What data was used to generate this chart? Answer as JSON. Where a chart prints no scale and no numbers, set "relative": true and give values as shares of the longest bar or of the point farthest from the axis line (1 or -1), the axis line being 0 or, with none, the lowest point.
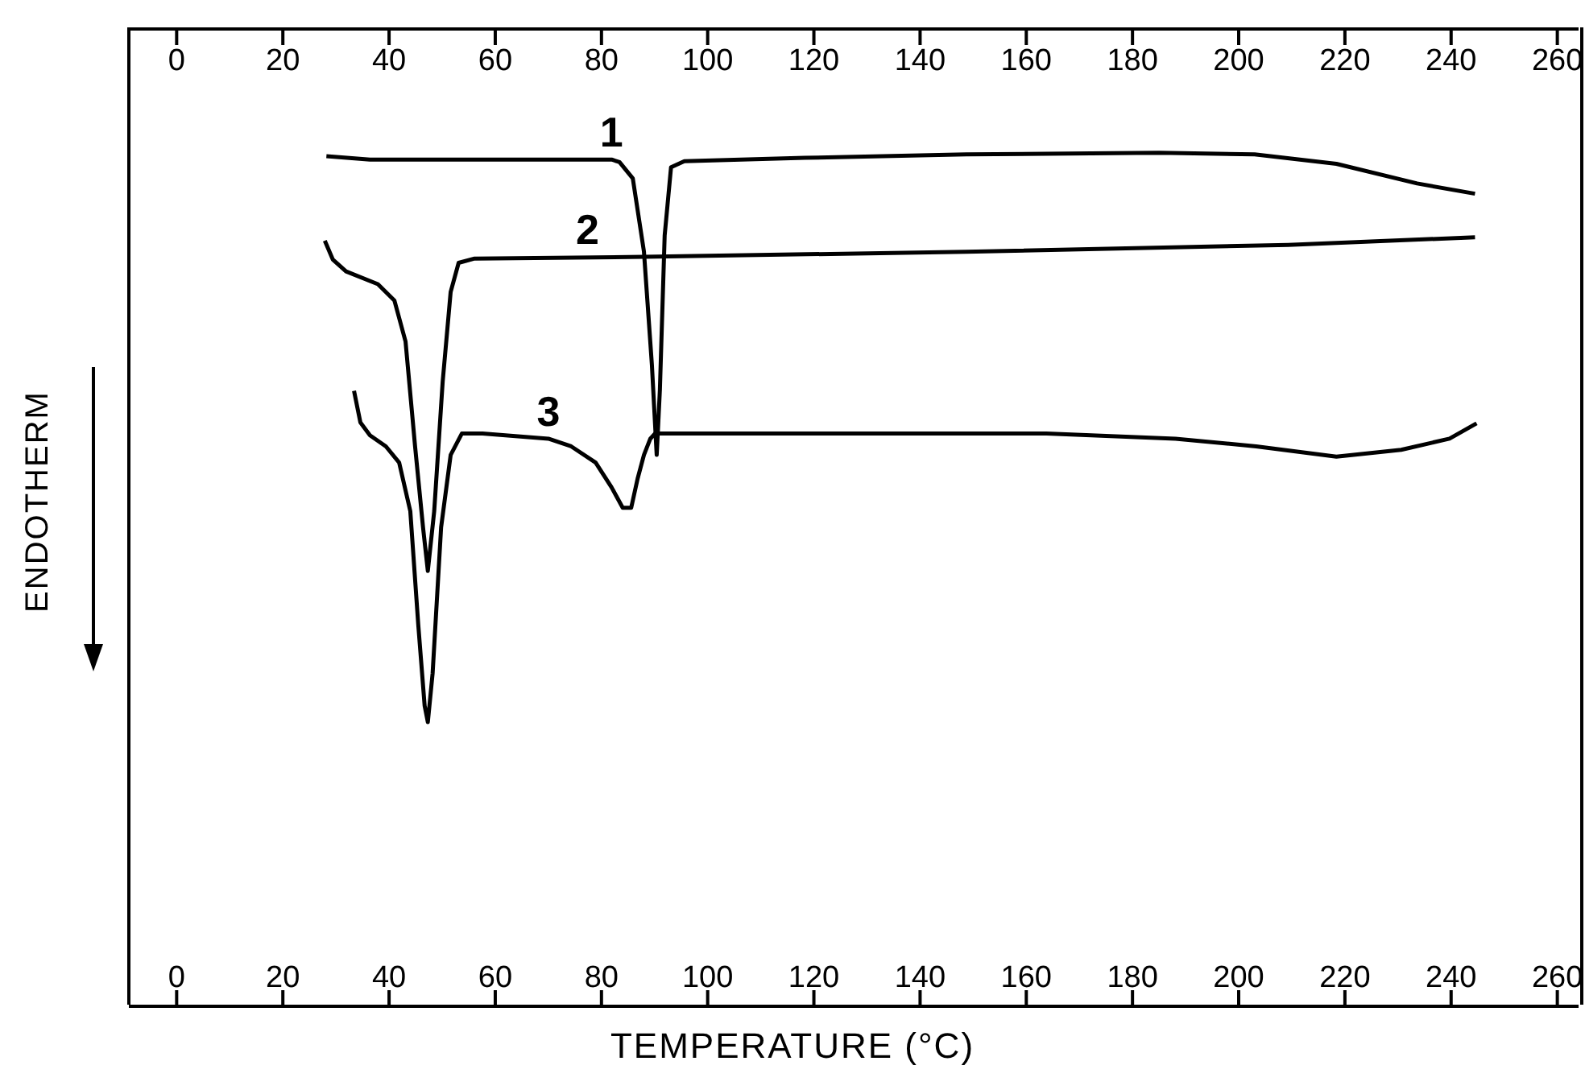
{
  "chart_data": {
    "type": "line",
    "relative": true,
    "xlabel": "TEMPERATURE (°C)",
    "ylabel": "ENDOTHERM",
    "xlim": [
      -9,
      264
    ],
    "xticks": [
      0,
      20,
      40,
      60,
      80,
      100,
      120,
      140,
      160,
      180,
      200,
      220,
      240,
      260
    ],
    "x2lim": [
      -9,
      264
    ],
    "x2ticks": [
      0,
      20,
      40,
      60,
      80,
      100,
      120,
      140,
      160,
      180,
      200,
      220,
      240,
      260
    ],
    "marker": "none",
    "line_style": "solid",
    "series": [
      {
        "name": "1",
        "color": "#000000",
        "x": [
          28.2,
          36.4,
          57.6,
          81.9,
          83.4,
          85.9,
          88,
          89.5,
          90.4,
          91,
          91.9,
          93.1,
          95.6,
          118.3,
          148.7,
          185,
          203,
          218.4,
          233.6,
          244.5
        ],
        "values": [
          0.996,
          0.992,
          0.992,
          0.992,
          0.989,
          0.97,
          0.884,
          0.751,
          0.646,
          0.722,
          0.903,
          0.983,
          0.99,
          0.994,
          0.998,
          1.0,
          0.998,
          0.987,
          0.964,
          0.952
        ]
      },
      {
        "name": "2",
        "color": "#000000",
        "x": [
          27.9,
          29.4,
          31.9,
          37.9,
          41,
          43.1,
          44.9,
          46.4,
          47.3,
          48.5,
          50.1,
          51.6,
          53.1,
          56.1,
          88,
          148.7,
          209.3,
          244.5
        ],
        "values": [
          0.897,
          0.875,
          0.861,
          0.846,
          0.827,
          0.779,
          0.656,
          0.561,
          0.51,
          0.58,
          0.732,
          0.837,
          0.871,
          0.876,
          0.878,
          0.884,
          0.892,
          0.901
        ]
      },
      {
        "name": "3",
        "color": "#000000",
        "x": [
          33.4,
          34.6,
          36.4,
          39.4,
          41.9,
          44,
          45.5,
          46.7,
          47.3,
          48.2,
          49.8,
          51.6,
          53.7,
          57.6,
          70,
          74.3,
          78.9,
          81.9,
          84,
          85.6,
          86.8,
          88,
          89.2,
          90.1,
          118.3,
          163.8,
          188.1,
          203.3,
          218.4,
          230.6,
          239.7,
          244.8
        ],
        "values": [
          0.721,
          0.684,
          0.669,
          0.656,
          0.637,
          0.58,
          0.447,
          0.352,
          0.333,
          0.39,
          0.561,
          0.646,
          0.671,
          0.671,
          0.665,
          0.656,
          0.637,
          0.608,
          0.584,
          0.584,
          0.618,
          0.646,
          0.665,
          0.671,
          0.671,
          0.671,
          0.665,
          0.656,
          0.644,
          0.652,
          0.665,
          0.683
        ]
      }
    ]
  }
}
